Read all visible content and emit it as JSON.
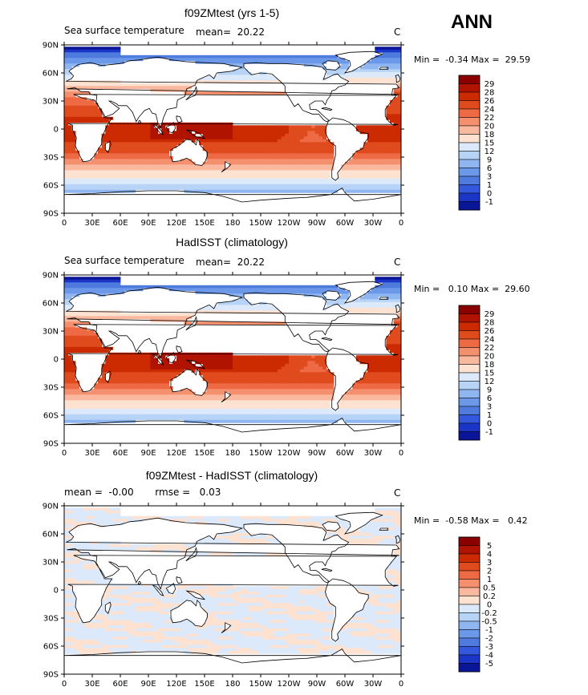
{
  "header": {
    "season": "ANN"
  },
  "panels": [
    {
      "title": "f09ZMtest (yrs 1-5)",
      "left_label": "Sea surface temperature",
      "center_label": "mean=  20.22",
      "units": "C",
      "minmax": "Min =  -0.34 Max =  29.59",
      "type": "sst",
      "levels": [
        "29",
        "28",
        "26",
        "24",
        "22",
        "20",
        "18",
        "15",
        "12",
        "9",
        "6",
        "3",
        "1",
        "0",
        "-1"
      ],
      "colors": [
        "#8b0000",
        "#b01400",
        "#cc2a00",
        "#e04b1e",
        "#ee6a44",
        "#f5906e",
        "#fab89e",
        "#fde2d2",
        "#dbe9fb",
        "#b7d3f6",
        "#8fb6f0",
        "#6c98ea",
        "#4f7bdf",
        "#3358dd",
        "#1c35c9",
        "#0a1597"
      ]
    },
    {
      "title": "HadISST (climatology)",
      "left_label": "Sea surface temperature",
      "center_label": "mean=  20.22",
      "units": "C",
      "minmax": "Min =   0.10 Max =  29.60",
      "type": "sst",
      "levels": [
        "29",
        "28",
        "26",
        "24",
        "22",
        "20",
        "18",
        "15",
        "12",
        "9",
        "6",
        "3",
        "1",
        "0",
        "-1"
      ],
      "colors": [
        "#8b0000",
        "#b01400",
        "#cc2a00",
        "#e04b1e",
        "#ee6a44",
        "#f5906e",
        "#fab89e",
        "#fde2d2",
        "#dbe9fb",
        "#b7d3f6",
        "#8fb6f0",
        "#6c98ea",
        "#4f7bdf",
        "#3358dd",
        "#1c35c9",
        "#0a1597"
      ]
    },
    {
      "title": "f09ZMtest - HadISST (climatology)",
      "left_label": "mean =  -0.00       rmse =   0.03",
      "center_label": "",
      "units": "C",
      "minmax": "Min =  -0.58 Max =   0.42",
      "type": "diff",
      "levels": [
        "5",
        "4",
        "3",
        "2",
        "1",
        "0.5",
        "0.2",
        "0",
        "-0.2",
        "-0.5",
        "-1",
        "-2",
        "-3",
        "-4",
        "-5"
      ],
      "colors": [
        "#8b0000",
        "#b01400",
        "#cc2a00",
        "#e04b1e",
        "#ee6a44",
        "#f5906e",
        "#fab89e",
        "#fde2d2",
        "#dbe9fb",
        "#b7d3f6",
        "#8fb6f0",
        "#6c98ea",
        "#4f7bdf",
        "#3358dd",
        "#1c35c9",
        "#0a1597"
      ]
    }
  ],
  "axes": {
    "lat_ticks": [
      "90N",
      "60N",
      "30N",
      "0",
      "30S",
      "60S",
      "90S"
    ],
    "lon_ticks": [
      "0",
      "30E",
      "60E",
      "90E",
      "120E",
      "150E",
      "180",
      "150W",
      "120W",
      "90W",
      "60W",
      "30W",
      "0"
    ]
  }
}
